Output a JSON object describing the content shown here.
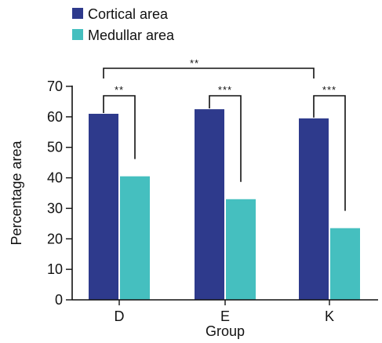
{
  "chart_data": {
    "type": "bar",
    "categories": [
      "D",
      "E",
      "K"
    ],
    "series": [
      {
        "name": "Cortical area",
        "color": "#2e3a8c",
        "values": [
          61,
          62.5,
          59.5
        ]
      },
      {
        "name": "Medullar area",
        "color": "#45bfbf",
        "values": [
          40.5,
          33,
          23.5
        ]
      }
    ],
    "xlabel": "Group",
    "ylabel": "Percentage area",
    "ylim": [
      0,
      70
    ],
    "yticks": [
      0,
      10,
      20,
      30,
      40,
      50,
      60,
      70
    ],
    "grid": false,
    "legend_position": "top-left",
    "annotations": [
      {
        "text": "**",
        "between": [
          "D: Cortical area",
          "D: Medullar area"
        ]
      },
      {
        "text": "***",
        "between": [
          "E: Cortical area",
          "E: Medullar area"
        ]
      },
      {
        "text": "***",
        "between": [
          "K: Cortical area",
          "K: Medullar area"
        ]
      },
      {
        "text": "**",
        "between": [
          "D",
          "K"
        ]
      }
    ]
  }
}
